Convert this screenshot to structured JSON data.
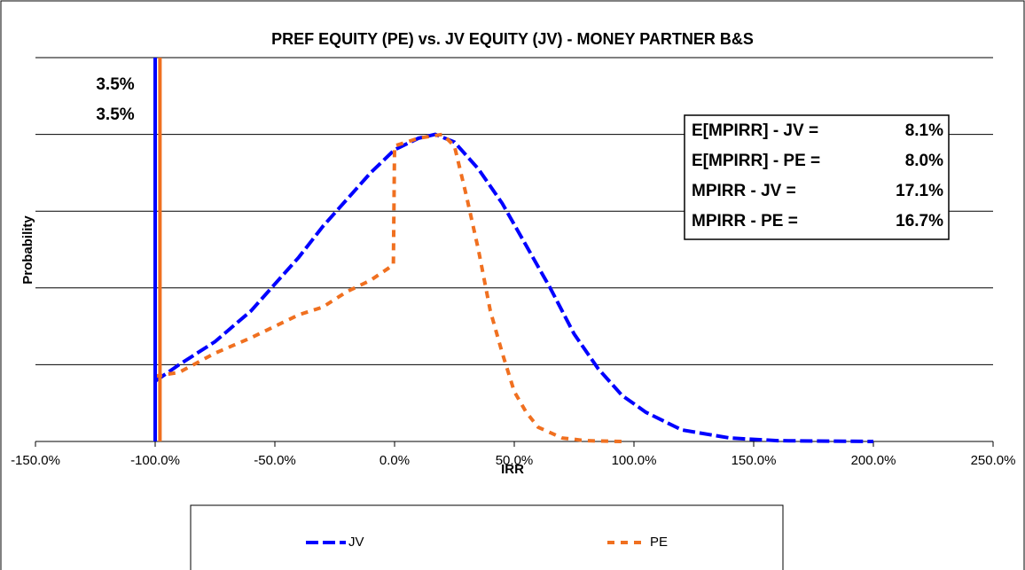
{
  "chart_data": {
    "type": "line",
    "title": "PREF EQUITY (PE) vs. JV EQUITY (JV) - MONEY PARTNER B&S",
    "x_label": "IRR",
    "y_label": "Probability",
    "xlim": [
      -150,
      250
    ],
    "ylim": [
      0,
      1
    ],
    "xticks": [
      {
        "value": -150,
        "label": "-150.0%"
      },
      {
        "value": -100,
        "label": "-100.0%"
      },
      {
        "value": -50,
        "label": "-50.0%"
      },
      {
        "value": 0,
        "label": "0.0%"
      },
      {
        "value": 50,
        "label": "50.0%"
      },
      {
        "value": 100,
        "label": "100.0%"
      },
      {
        "value": 150,
        "label": "150.0%"
      },
      {
        "value": 200,
        "label": "200.0%"
      },
      {
        "value": 250,
        "label": "250.0%"
      }
    ],
    "grid": true,
    "legend": "bottom",
    "series": [
      {
        "name": "JV",
        "color": "#0000ff",
        "x": [
          -100,
          -90,
          -75,
          -60,
          -50,
          -40,
          -30,
          -20,
          -10,
          0,
          10,
          17,
          25,
          35,
          45,
          55,
          65,
          75,
          85,
          95,
          105,
          120,
          140,
          160,
          200
        ],
        "values": [
          0.157,
          0.2,
          0.26,
          0.34,
          0.41,
          0.48,
          0.56,
          0.63,
          0.7,
          0.76,
          0.79,
          0.8,
          0.78,
          0.71,
          0.62,
          0.51,
          0.4,
          0.28,
          0.19,
          0.12,
          0.076,
          0.03,
          0.009,
          0.002,
          0
        ]
      },
      {
        "name": "PE",
        "color": "#f07020",
        "x": [
          -100,
          -90,
          -75,
          -60,
          -50,
          -40,
          -30,
          -20,
          -10,
          -0.5,
          0,
          10,
          20,
          25,
          30,
          35,
          40,
          45,
          50,
          55,
          60,
          70,
          80,
          95
        ],
        "values": [
          0.17,
          0.18,
          0.23,
          0.27,
          0.3,
          0.33,
          0.35,
          0.39,
          0.42,
          0.46,
          0.77,
          0.79,
          0.8,
          0.77,
          0.64,
          0.5,
          0.34,
          0.23,
          0.13,
          0.076,
          0.037,
          0.009,
          0.002,
          0
        ]
      }
    ],
    "markers": [
      {
        "x": -100,
        "label": "3.5%",
        "color": "#0000ff"
      },
      {
        "x": -98,
        "label": "3.5%",
        "color": "#f07020"
      }
    ],
    "stats": [
      {
        "label": "E[MPIRR] - JV =",
        "value": 8.1,
        "value_label": "8.1%",
        "color": "#0000ff"
      },
      {
        "label": "E[MPIRR] - PE =",
        "value": 8.0,
        "value_label": "8.0%",
        "color": "#f07020"
      },
      {
        "label": "MPIRR - JV =",
        "value": 17.1,
        "value_label": "17.1%",
        "color": "#0000ff"
      },
      {
        "label": "MPIRR - PE =",
        "value": 16.7,
        "value_label": "16.7%",
        "color": "#f07020"
      }
    ]
  }
}
